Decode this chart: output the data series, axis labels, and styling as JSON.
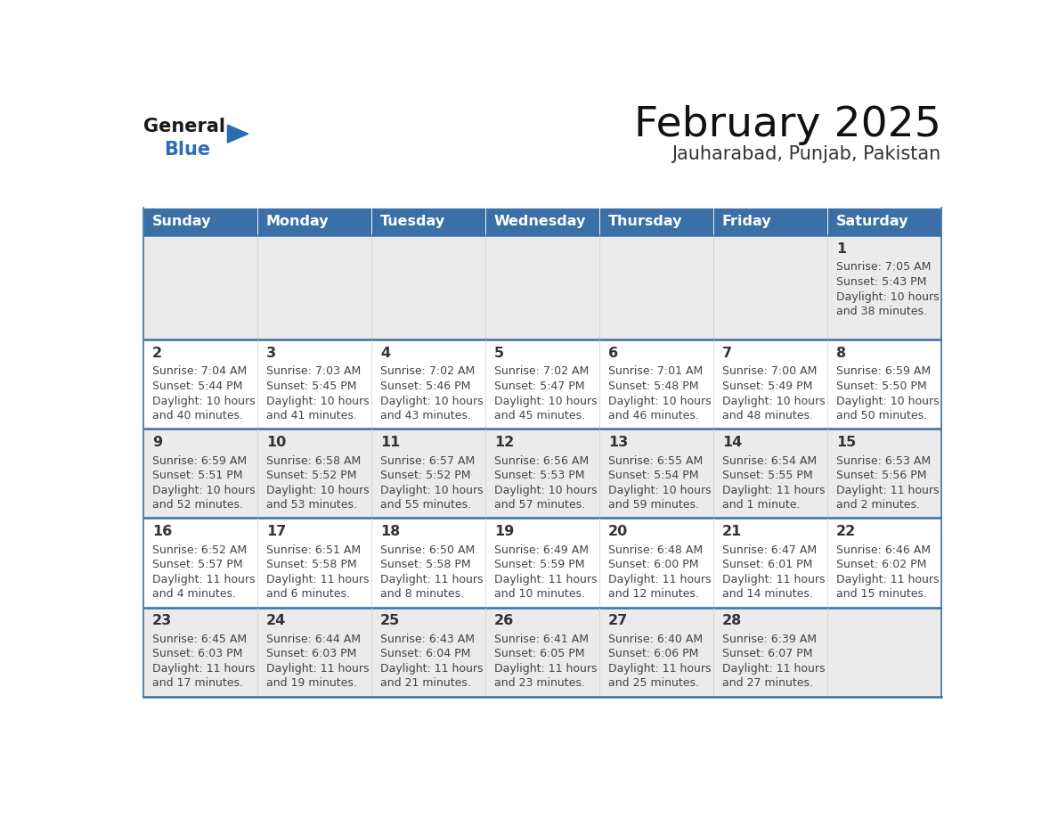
{
  "title": "February 2025",
  "subtitle": "Jauharabad, Punjab, Pakistan",
  "header_color": "#3a6fa8",
  "header_text_color": "#ffffff",
  "days_of_week": [
    "Sunday",
    "Monday",
    "Tuesday",
    "Wednesday",
    "Thursday",
    "Friday",
    "Saturday"
  ],
  "cell_bg_even": "#ebebeb",
  "cell_bg_odd": "#ffffff",
  "row_divider_color": "#3a6fa8",
  "day_number_color": "#333333",
  "info_text_color": "#444444",
  "logo_general_color": "#1a1a1a",
  "logo_blue_color": "#2a6db5",
  "calendar_data": [
    [
      null,
      null,
      null,
      null,
      null,
      null,
      {
        "day": 1,
        "sunrise": "7:05 AM",
        "sunset": "5:43 PM",
        "daylight_line1": "Daylight: 10 hours",
        "daylight_line2": "and 38 minutes."
      }
    ],
    [
      {
        "day": 2,
        "sunrise": "7:04 AM",
        "sunset": "5:44 PM",
        "daylight_line1": "Daylight: 10 hours",
        "daylight_line2": "and 40 minutes."
      },
      {
        "day": 3,
        "sunrise": "7:03 AM",
        "sunset": "5:45 PM",
        "daylight_line1": "Daylight: 10 hours",
        "daylight_line2": "and 41 minutes."
      },
      {
        "day": 4,
        "sunrise": "7:02 AM",
        "sunset": "5:46 PM",
        "daylight_line1": "Daylight: 10 hours",
        "daylight_line2": "and 43 minutes."
      },
      {
        "day": 5,
        "sunrise": "7:02 AM",
        "sunset": "5:47 PM",
        "daylight_line1": "Daylight: 10 hours",
        "daylight_line2": "and 45 minutes."
      },
      {
        "day": 6,
        "sunrise": "7:01 AM",
        "sunset": "5:48 PM",
        "daylight_line1": "Daylight: 10 hours",
        "daylight_line2": "and 46 minutes."
      },
      {
        "day": 7,
        "sunrise": "7:00 AM",
        "sunset": "5:49 PM",
        "daylight_line1": "Daylight: 10 hours",
        "daylight_line2": "and 48 minutes."
      },
      {
        "day": 8,
        "sunrise": "6:59 AM",
        "sunset": "5:50 PM",
        "daylight_line1": "Daylight: 10 hours",
        "daylight_line2": "and 50 minutes."
      }
    ],
    [
      {
        "day": 9,
        "sunrise": "6:59 AM",
        "sunset": "5:51 PM",
        "daylight_line1": "Daylight: 10 hours",
        "daylight_line2": "and 52 minutes."
      },
      {
        "day": 10,
        "sunrise": "6:58 AM",
        "sunset": "5:52 PM",
        "daylight_line1": "Daylight: 10 hours",
        "daylight_line2": "and 53 minutes."
      },
      {
        "day": 11,
        "sunrise": "6:57 AM",
        "sunset": "5:52 PM",
        "daylight_line1": "Daylight: 10 hours",
        "daylight_line2": "and 55 minutes."
      },
      {
        "day": 12,
        "sunrise": "6:56 AM",
        "sunset": "5:53 PM",
        "daylight_line1": "Daylight: 10 hours",
        "daylight_line2": "and 57 minutes."
      },
      {
        "day": 13,
        "sunrise": "6:55 AM",
        "sunset": "5:54 PM",
        "daylight_line1": "Daylight: 10 hours",
        "daylight_line2": "and 59 minutes."
      },
      {
        "day": 14,
        "sunrise": "6:54 AM",
        "sunset": "5:55 PM",
        "daylight_line1": "Daylight: 11 hours",
        "daylight_line2": "and 1 minute."
      },
      {
        "day": 15,
        "sunrise": "6:53 AM",
        "sunset": "5:56 PM",
        "daylight_line1": "Daylight: 11 hours",
        "daylight_line2": "and 2 minutes."
      }
    ],
    [
      {
        "day": 16,
        "sunrise": "6:52 AM",
        "sunset": "5:57 PM",
        "daylight_line1": "Daylight: 11 hours",
        "daylight_line2": "and 4 minutes."
      },
      {
        "day": 17,
        "sunrise": "6:51 AM",
        "sunset": "5:58 PM",
        "daylight_line1": "Daylight: 11 hours",
        "daylight_line2": "and 6 minutes."
      },
      {
        "day": 18,
        "sunrise": "6:50 AM",
        "sunset": "5:58 PM",
        "daylight_line1": "Daylight: 11 hours",
        "daylight_line2": "and 8 minutes."
      },
      {
        "day": 19,
        "sunrise": "6:49 AM",
        "sunset": "5:59 PM",
        "daylight_line1": "Daylight: 11 hours",
        "daylight_line2": "and 10 minutes."
      },
      {
        "day": 20,
        "sunrise": "6:48 AM",
        "sunset": "6:00 PM",
        "daylight_line1": "Daylight: 11 hours",
        "daylight_line2": "and 12 minutes."
      },
      {
        "day": 21,
        "sunrise": "6:47 AM",
        "sunset": "6:01 PM",
        "daylight_line1": "Daylight: 11 hours",
        "daylight_line2": "and 14 minutes."
      },
      {
        "day": 22,
        "sunrise": "6:46 AM",
        "sunset": "6:02 PM",
        "daylight_line1": "Daylight: 11 hours",
        "daylight_line2": "and 15 minutes."
      }
    ],
    [
      {
        "day": 23,
        "sunrise": "6:45 AM",
        "sunset": "6:03 PM",
        "daylight_line1": "Daylight: 11 hours",
        "daylight_line2": "and 17 minutes."
      },
      {
        "day": 24,
        "sunrise": "6:44 AM",
        "sunset": "6:03 PM",
        "daylight_line1": "Daylight: 11 hours",
        "daylight_line2": "and 19 minutes."
      },
      {
        "day": 25,
        "sunrise": "6:43 AM",
        "sunset": "6:04 PM",
        "daylight_line1": "Daylight: 11 hours",
        "daylight_line2": "and 21 minutes."
      },
      {
        "day": 26,
        "sunrise": "6:41 AM",
        "sunset": "6:05 PM",
        "daylight_line1": "Daylight: 11 hours",
        "daylight_line2": "and 23 minutes."
      },
      {
        "day": 27,
        "sunrise": "6:40 AM",
        "sunset": "6:06 PM",
        "daylight_line1": "Daylight: 11 hours",
        "daylight_line2": "and 25 minutes."
      },
      {
        "day": 28,
        "sunrise": "6:39 AM",
        "sunset": "6:07 PM",
        "daylight_line1": "Daylight: 11 hours",
        "daylight_line2": "and 27 minutes."
      },
      null
    ]
  ]
}
